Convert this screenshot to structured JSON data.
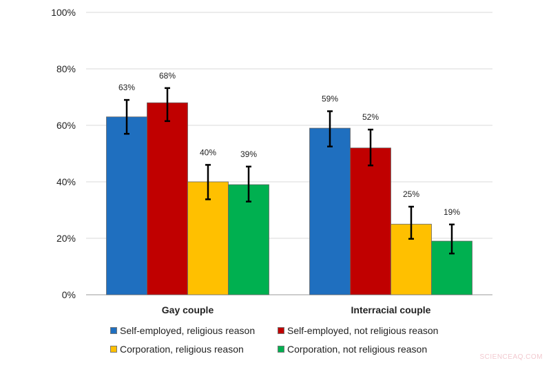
{
  "chart_data": {
    "type": "bar",
    "categories": [
      "Gay couple",
      "Interracial couple"
    ],
    "ylim": [
      0,
      100
    ],
    "yticks": [
      "0%",
      "20%",
      "40%",
      "60%",
      "80%",
      "100%"
    ],
    "ytick_values": [
      0,
      20,
      40,
      60,
      80,
      100
    ],
    "grid": true,
    "legend_position": "bottom",
    "series": [
      {
        "name": "Self-employed, religious reason",
        "color": "#1f6fbf",
        "values": [
          63,
          59
        ],
        "labels": [
          "63%",
          "59%"
        ],
        "err_high": [
          69,
          65
        ],
        "err_low": [
          57,
          52.5
        ]
      },
      {
        "name": "Self-employed, not religious reason",
        "color": "#c00000",
        "values": [
          68,
          52
        ],
        "labels": [
          "68%",
          "52%"
        ],
        "err_high": [
          73.2,
          58.5
        ],
        "err_low": [
          61.5,
          45.8
        ]
      },
      {
        "name": "Corporation, religious reason",
        "color": "#ffc000",
        "values": [
          40,
          25
        ],
        "labels": [
          "40%",
          "25%"
        ],
        "err_high": [
          46,
          31.2
        ],
        "err_low": [
          33.8,
          19.8
        ]
      },
      {
        "name": "Corporation, not religious reason",
        "color": "#00b050",
        "values": [
          39,
          19
        ],
        "labels": [
          "39%",
          "19%"
        ],
        "err_high": [
          45.4,
          24.9
        ],
        "err_low": [
          33,
          14.6
        ]
      }
    ]
  },
  "watermark": "SCIENCEAQ.COM"
}
